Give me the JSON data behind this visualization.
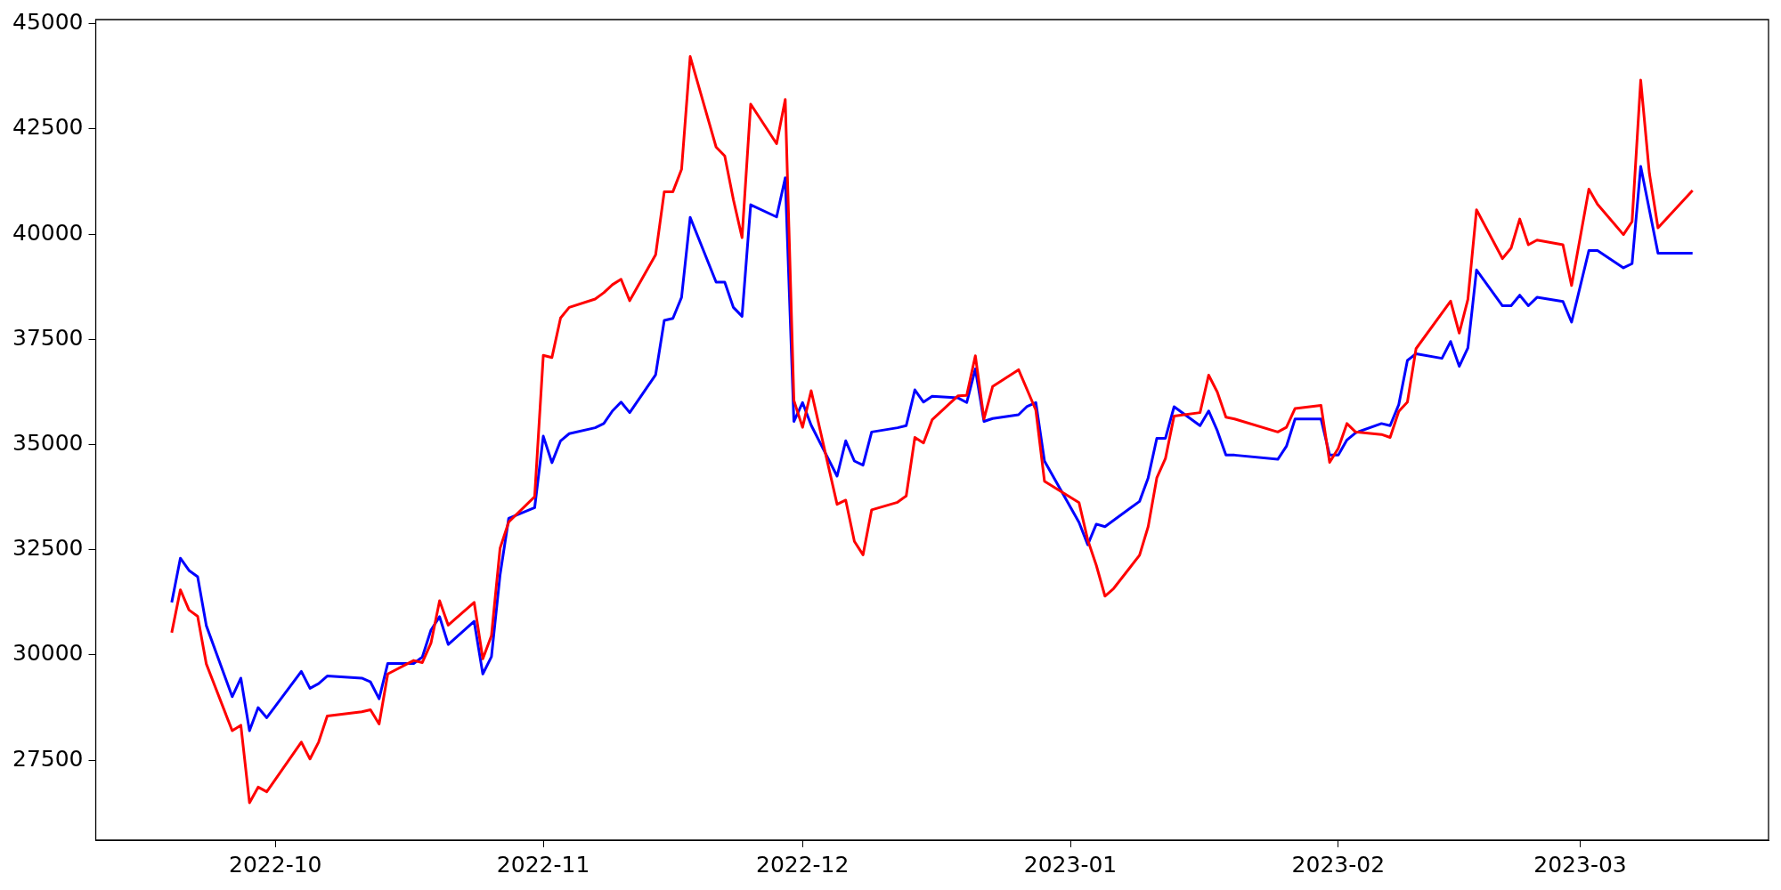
{
  "chart_data": {
    "type": "line",
    "grid": false,
    "legend": false,
    "marker": "none",
    "line_style": "solid",
    "xlim": [
      "2022-09-10T05:00",
      "2023-03-22T19:00"
    ],
    "xticks": [
      {
        "value": "2022-10-01",
        "label": "2022-10"
      },
      {
        "value": "2022-11-01",
        "label": "2022-11"
      },
      {
        "value": "2022-12-01",
        "label": "2022-12"
      },
      {
        "value": "2023-01-01",
        "label": "2023-01"
      },
      {
        "value": "2023-02-01",
        "label": "2023-02"
      },
      {
        "value": "2023-03-01",
        "label": "2023-03"
      }
    ],
    "ylim": [
      25600,
      45100
    ],
    "yticks": [
      27500,
      30000,
      32500,
      35000,
      37500,
      40000,
      42500,
      45000
    ],
    "series": [
      {
        "color": "#ff0000",
        "x": [
          "2022-09-19",
          "2022-09-20",
          "2022-09-21",
          "2022-09-22",
          "2022-09-23",
          "2022-09-26",
          "2022-09-27",
          "2022-09-28",
          "2022-09-29",
          "2022-09-30",
          "2022-10-04",
          "2022-10-05",
          "2022-10-06",
          "2022-10-07",
          "2022-10-11",
          "2022-10-12",
          "2022-10-13",
          "2022-10-14",
          "2022-10-17",
          "2022-10-18",
          "2022-10-19",
          "2022-10-20",
          "2022-10-21",
          "2022-10-24",
          "2022-10-25",
          "2022-10-26",
          "2022-10-27",
          "2022-10-28",
          "2022-10-31",
          "2022-11-01",
          "2022-11-02",
          "2022-11-03",
          "2022-11-04",
          "2022-11-07",
          "2022-11-08",
          "2022-11-09",
          "2022-11-10",
          "2022-11-11",
          "2022-11-14",
          "2022-11-15",
          "2022-11-16",
          "2022-11-17",
          "2022-11-18",
          "2022-11-21",
          "2022-11-22",
          "2022-11-23",
          "2022-11-24",
          "2022-11-25",
          "2022-11-28",
          "2022-11-29",
          "2022-11-30",
          "2022-12-01",
          "2022-12-02",
          "2022-12-05",
          "2022-12-06",
          "2022-12-07",
          "2022-12-08",
          "2022-12-09",
          "2022-12-12",
          "2022-12-13",
          "2022-12-14",
          "2022-12-15",
          "2022-12-16",
          "2022-12-19",
          "2022-12-20",
          "2022-12-21",
          "2022-12-22",
          "2022-12-23",
          "2022-12-26",
          "2022-12-28",
          "2022-12-29",
          "2023-01-02",
          "2023-01-03",
          "2023-01-04",
          "2023-01-05",
          "2023-01-06",
          "2023-01-09",
          "2023-01-10",
          "2023-01-11",
          "2023-01-12",
          "2023-01-13",
          "2023-01-16",
          "2023-01-17",
          "2023-01-18",
          "2023-01-19",
          "2023-01-20",
          "2023-01-25",
          "2023-01-26",
          "2023-01-27",
          "2023-01-30",
          "2023-01-31",
          "2023-02-01",
          "2023-02-02",
          "2023-02-03",
          "2023-02-06",
          "2023-02-07",
          "2023-02-08",
          "2023-02-09",
          "2023-02-10",
          "2023-02-14",
          "2023-02-15",
          "2023-02-16",
          "2023-02-17",
          "2023-02-20",
          "2023-02-21",
          "2023-02-22",
          "2023-02-23",
          "2023-02-24",
          "2023-02-27",
          "2023-02-28",
          "2023-03-02",
          "2023-03-03",
          "2023-03-06",
          "2023-03-07",
          "2023-03-08",
          "2023-03-09",
          "2023-03-10",
          "2023-03-14"
        ],
        "values": [
          30530,
          31550,
          31070,
          30920,
          29790,
          28200,
          28330,
          26490,
          26860,
          26750,
          27930,
          27530,
          27930,
          28550,
          28650,
          28700,
          28360,
          29550,
          29870,
          29820,
          30280,
          31290,
          30710,
          31250,
          29910,
          30460,
          32540,
          33160,
          33760,
          37120,
          37070,
          38010,
          38260,
          38460,
          38610,
          38800,
          38930,
          38420,
          39510,
          41010,
          41010,
          41540,
          44220,
          42070,
          41860,
          40820,
          39920,
          43090,
          42150,
          43200,
          36050,
          35410,
          36280,
          33580,
          33680,
          32700,
          32380,
          33450,
          33630,
          33780,
          35170,
          35040,
          35590,
          36160,
          36170,
          37110,
          35610,
          36380,
          36780,
          35820,
          34130,
          33620,
          32740,
          32130,
          31400,
          31580,
          32370,
          33050,
          34210,
          34670,
          35680,
          35760,
          36650,
          36250,
          35650,
          35610,
          35300,
          35410,
          35860,
          35930,
          34580,
          34910,
          35500,
          35300,
          35240,
          35170,
          35790,
          36010,
          37280,
          38410,
          37650,
          38450,
          40580,
          39420,
          39670,
          40360,
          39750,
          39860,
          39750,
          38780,
          41070,
          40710,
          39990,
          40300,
          43660,
          41450,
          40150,
          41040
        ]
      },
      {
        "color": "#0000ff",
        "x": [
          "2022-09-19",
          "2022-09-20",
          "2022-09-21",
          "2022-09-22",
          "2022-09-23",
          "2022-09-26",
          "2022-09-27",
          "2022-09-28",
          "2022-09-29",
          "2022-09-30",
          "2022-10-04",
          "2022-10-05",
          "2022-10-06",
          "2022-10-07",
          "2022-10-11",
          "2022-10-12",
          "2022-10-13",
          "2022-10-14",
          "2022-10-17",
          "2022-10-18",
          "2022-10-19",
          "2022-10-20",
          "2022-10-21",
          "2022-10-24",
          "2022-10-25",
          "2022-10-26",
          "2022-10-27",
          "2022-10-28",
          "2022-10-31",
          "2022-11-01",
          "2022-11-02",
          "2022-11-03",
          "2022-11-04",
          "2022-11-07",
          "2022-11-08",
          "2022-11-09",
          "2022-11-10",
          "2022-11-11",
          "2022-11-14",
          "2022-11-15",
          "2022-11-16",
          "2022-11-17",
          "2022-11-18",
          "2022-11-21",
          "2022-11-22",
          "2022-11-23",
          "2022-11-24",
          "2022-11-25",
          "2022-11-28",
          "2022-11-29",
          "2022-11-30",
          "2022-12-01",
          "2022-12-02",
          "2022-12-05",
          "2022-12-06",
          "2022-12-07",
          "2022-12-08",
          "2022-12-09",
          "2022-12-12",
          "2022-12-13",
          "2022-12-14",
          "2022-12-15",
          "2022-12-16",
          "2022-12-19",
          "2022-12-20",
          "2022-12-21",
          "2022-12-22",
          "2022-12-23",
          "2022-12-26",
          "2022-12-27",
          "2022-12-28",
          "2022-12-29",
          "2023-01-02",
          "2023-01-03",
          "2023-01-04",
          "2023-01-05",
          "2023-01-09",
          "2023-01-10",
          "2023-01-11",
          "2023-01-12",
          "2023-01-13",
          "2023-01-16",
          "2023-01-17",
          "2023-01-18",
          "2023-01-19",
          "2023-01-20",
          "2023-01-25",
          "2023-01-26",
          "2023-01-27",
          "2023-01-30",
          "2023-01-31",
          "2023-02-01",
          "2023-02-02",
          "2023-02-03",
          "2023-02-06",
          "2023-02-07",
          "2023-02-08",
          "2023-02-09",
          "2023-02-10",
          "2023-02-13",
          "2023-02-14",
          "2023-02-15",
          "2023-02-16",
          "2023-02-17",
          "2023-02-20",
          "2023-02-21",
          "2023-02-22",
          "2023-02-23",
          "2023-02-24",
          "2023-02-27",
          "2023-02-28",
          "2023-03-02",
          "2023-03-03",
          "2023-03-06",
          "2023-03-07",
          "2023-03-08",
          "2023-03-10",
          "2023-03-14"
        ],
        "values": [
          31250,
          32300,
          32010,
          31860,
          30700,
          29010,
          29450,
          28200,
          28750,
          28510,
          29610,
          29210,
          29320,
          29500,
          29450,
          29360,
          28960,
          29800,
          29800,
          29950,
          30590,
          30910,
          30250,
          30800,
          29550,
          29960,
          31910,
          33250,
          33500,
          35200,
          34570,
          35090,
          35260,
          35400,
          35500,
          35800,
          36010,
          35760,
          36660,
          37950,
          38000,
          38500,
          40400,
          38860,
          38860,
          38260,
          38050,
          40700,
          40410,
          41340,
          35550,
          36000,
          35460,
          34250,
          35090,
          34610,
          34510,
          35300,
          35400,
          35450,
          36300,
          36010,
          36150,
          36110,
          36000,
          36800,
          35550,
          35620,
          35710,
          35910,
          36000,
          34610,
          33150,
          32620,
          33110,
          33050,
          33650,
          34210,
          35150,
          35150,
          35900,
          35450,
          35800,
          35330,
          34750,
          34750,
          34650,
          34960,
          35610,
          35610,
          34750,
          34750,
          35110,
          35280,
          35500,
          35450,
          35950,
          37000,
          37160,
          37050,
          37450,
          36860,
          37300,
          39150,
          38300,
          38300,
          38550,
          38300,
          38500,
          38400,
          37910,
          39610,
          39610,
          39200,
          39300,
          41610,
          39550,
          39550
        ]
      }
    ]
  }
}
